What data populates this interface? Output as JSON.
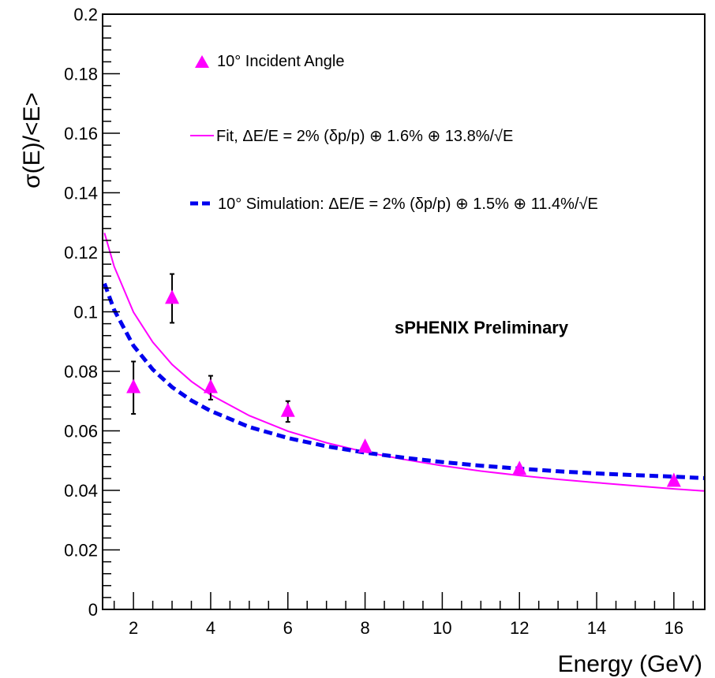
{
  "chart_data": {
    "type": "scatter",
    "title": "",
    "xlabel": "Energy (GeV)",
    "ylabel": "σ(E)/<E>",
    "xlim": [
      1.2,
      16.8
    ],
    "ylim": [
      0,
      0.2
    ],
    "x_ticks": [
      2,
      4,
      6,
      8,
      10,
      12,
      14,
      16
    ],
    "x_tick_labels": [
      "2",
      "4",
      "6",
      "8",
      "10",
      "12",
      "14",
      "16"
    ],
    "y_ticks": [
      0,
      0.02,
      0.04,
      0.06,
      0.08,
      0.1,
      0.12,
      0.14,
      0.16,
      0.18,
      0.2
    ],
    "y_tick_labels": [
      "0",
      "0.02",
      "0.04",
      "0.06",
      "0.08",
      "0.1",
      "0.12",
      "0.14",
      "0.16",
      "0.18",
      "0.2"
    ],
    "grid": false,
    "legend_position": "top-right",
    "series": [
      {
        "name": "10° Incident Angle",
        "kind": "points",
        "marker": "triangle",
        "color": "#ff00ff",
        "points": [
          {
            "x": 2,
            "y": 0.0745,
            "err": 0.0088
          },
          {
            "x": 3,
            "y": 0.1045,
            "err": 0.0082
          },
          {
            "x": 4,
            "y": 0.0745,
            "err": 0.004
          },
          {
            "x": 6,
            "y": 0.0665,
            "err": 0.0035
          },
          {
            "x": 8,
            "y": 0.0545,
            "err": 0.001
          },
          {
            "x": 12,
            "y": 0.047,
            "err": 0.0008
          },
          {
            "x": 16,
            "y": 0.043,
            "err": 0.0008
          }
        ]
      },
      {
        "name": "Fit, ΔE/E = 2% (δp/p) ⊕ 1.6% ⊕ 13.8%/√E",
        "kind": "curve",
        "style": "solid",
        "color": "#ff00ff",
        "curve": [
          {
            "x": 1.25,
            "y": 0.1265
          },
          {
            "x": 1.5,
            "y": 0.1152
          },
          {
            "x": 2,
            "y": 0.0999
          },
          {
            "x": 2.5,
            "y": 0.0898
          },
          {
            "x": 3,
            "y": 0.0823
          },
          {
            "x": 3.5,
            "y": 0.0766
          },
          {
            "x": 4,
            "y": 0.0721
          },
          {
            "x": 5,
            "y": 0.0651
          },
          {
            "x": 6,
            "y": 0.0599
          },
          {
            "x": 7,
            "y": 0.056
          },
          {
            "x": 8,
            "y": 0.0529
          },
          {
            "x": 9,
            "y": 0.0504
          },
          {
            "x": 10,
            "y": 0.0483
          },
          {
            "x": 11,
            "y": 0.0465
          },
          {
            "x": 12,
            "y": 0.045
          },
          {
            "x": 13,
            "y": 0.0437
          },
          {
            "x": 14,
            "y": 0.0426
          },
          {
            "x": 15,
            "y": 0.0415
          },
          {
            "x": 16,
            "y": 0.0405
          },
          {
            "x": 16.8,
            "y": 0.0398
          }
        ]
      },
      {
        "name": "10° Simulation:  ΔE/E = 2% (δp/p) ⊕ 1.5% ⊕ 11.4%/√E",
        "kind": "curve",
        "style": "dashed",
        "color": "#0000ee",
        "curve": [
          {
            "x": 1.25,
            "y": 0.1095
          },
          {
            "x": 1.5,
            "y": 0.1006
          },
          {
            "x": 2,
            "y": 0.0886
          },
          {
            "x": 2.5,
            "y": 0.0806
          },
          {
            "x": 3,
            "y": 0.0747
          },
          {
            "x": 3.5,
            "y": 0.0702
          },
          {
            "x": 4,
            "y": 0.0667
          },
          {
            "x": 5,
            "y": 0.0613
          },
          {
            "x": 6,
            "y": 0.0576
          },
          {
            "x": 7,
            "y": 0.0548
          },
          {
            "x": 8,
            "y": 0.0527
          },
          {
            "x": 9,
            "y": 0.051
          },
          {
            "x": 10,
            "y": 0.0495
          },
          {
            "x": 11,
            "y": 0.0483
          },
          {
            "x": 12,
            "y": 0.0473
          },
          {
            "x": 13,
            "y": 0.0464
          },
          {
            "x": 14,
            "y": 0.0457
          },
          {
            "x": 15,
            "y": 0.0451
          },
          {
            "x": 16,
            "y": 0.0446
          },
          {
            "x": 16.8,
            "y": 0.0441
          }
        ]
      }
    ],
    "annotations": [
      "sPHENIX Preliminary"
    ]
  }
}
